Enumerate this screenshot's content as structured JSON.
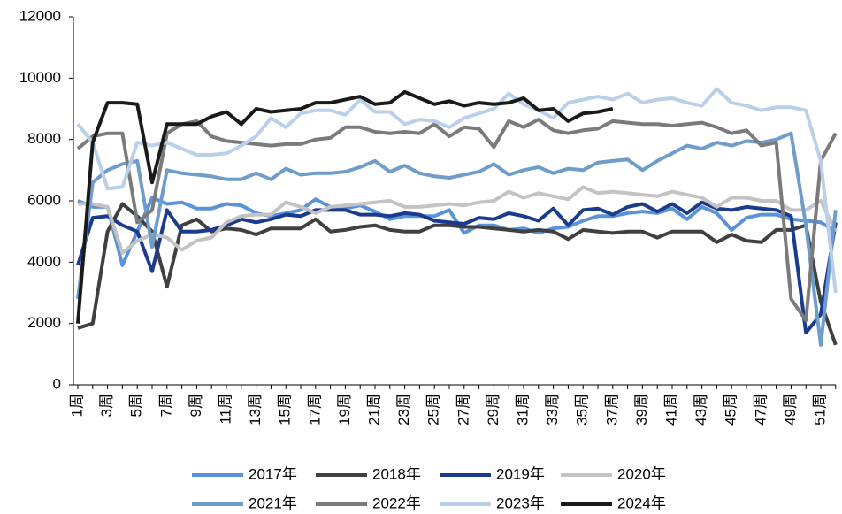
{
  "chart_data": {
    "type": "line",
    "categories": [
      "1周",
      null,
      "3周",
      null,
      "5周",
      null,
      "7周",
      null,
      "9周",
      null,
      "11周",
      null,
      "13周",
      null,
      "15周",
      null,
      "17周",
      null,
      "19周",
      null,
      "21周",
      null,
      "23周",
      null,
      "25周",
      null,
      "27周",
      null,
      "29周",
      null,
      "31周",
      null,
      "33周",
      null,
      "35周",
      null,
      "37周",
      null,
      "39周",
      null,
      "41周",
      null,
      "43周",
      null,
      "45周",
      null,
      "47周",
      null,
      "49周",
      null,
      "51周",
      null
    ],
    "ylim": [
      0,
      12000
    ],
    "yticks": [
      0,
      2000,
      4000,
      6000,
      8000,
      10000,
      12000
    ],
    "grid": false,
    "legend": "bottom",
    "series": [
      {
        "name": "2017年",
        "color": "#5b93d8",
        "values": [
          6000,
          5800,
          5800,
          3900,
          5000,
          6100,
          5900,
          5950,
          5750,
          5750,
          5900,
          5850,
          5600,
          5500,
          5600,
          5700,
          6050,
          5800,
          5750,
          5850,
          5650,
          5400,
          5500,
          5500,
          5500,
          5700,
          4950,
          5200,
          5200,
          5050,
          5100,
          4950,
          5100,
          5150,
          5350,
          5500,
          5500,
          5600,
          5650,
          5600,
          5750,
          5400,
          5800,
          5600,
          5050,
          5450,
          5550,
          5550,
          5400,
          5350,
          5300,
          5000
        ]
      },
      {
        "name": "2018年",
        "color": "#404040",
        "values": [
          1850,
          2000,
          5000,
          5900,
          5500,
          5000,
          3200,
          5200,
          5400,
          5000,
          5100,
          5050,
          4900,
          5100,
          5100,
          5100,
          5400,
          5000,
          5050,
          5150,
          5200,
          5050,
          5000,
          5000,
          5200,
          5200,
          5150,
          5150,
          5100,
          5050,
          5000,
          5050,
          5000,
          4750,
          5050,
          5000,
          4950,
          5000,
          5000,
          4800,
          5000,
          5000,
          5000,
          4650,
          4900,
          4700,
          4650,
          5050,
          5050,
          5200,
          2700,
          1300
        ]
      },
      {
        "name": "2019年",
        "color": "#1b3b8f",
        "values": [
          3900,
          5450,
          5500,
          5200,
          5000,
          3700,
          5700,
          5000,
          5000,
          5050,
          5200,
          5400,
          5300,
          5400,
          5550,
          5500,
          5700,
          5700,
          5700,
          5550,
          5550,
          5500,
          5600,
          5550,
          5350,
          5300,
          5250,
          5450,
          5400,
          5600,
          5500,
          5350,
          5750,
          5200,
          5700,
          5750,
          5550,
          5800,
          5900,
          5650,
          5900,
          5600,
          5950,
          5750,
          5700,
          5800,
          5750,
          5700,
          5500,
          1700,
          2300,
          5300
        ]
      },
      {
        "name": "2020年",
        "color": "#c3c3c3",
        "values": [
          5900,
          5900,
          5800,
          4300,
          4700,
          4900,
          4800,
          4400,
          4700,
          4800,
          5300,
          5500,
          5550,
          5550,
          5950,
          5800,
          5600,
          5800,
          5850,
          5900,
          5950,
          6000,
          5800,
          5800,
          5850,
          5900,
          5850,
          5950,
          6000,
          6300,
          6100,
          6250,
          6150,
          6050,
          6450,
          6250,
          6300,
          6250,
          6200,
          6150,
          6300,
          6200,
          6100,
          5800,
          6100,
          6100,
          6000,
          6000,
          5700,
          5700,
          6000,
          5000
        ]
      },
      {
        "name": "2021年",
        "color": "#6e9dcb",
        "values": [
          2800,
          6600,
          7000,
          7200,
          7300,
          4500,
          7000,
          6900,
          6850,
          6800,
          6700,
          6700,
          6900,
          6700,
          7050,
          6850,
          6900,
          6900,
          6950,
          7100,
          7300,
          6950,
          7150,
          6900,
          6800,
          6750,
          6850,
          6950,
          7200,
          6850,
          7000,
          7100,
          6900,
          7050,
          7000,
          7250,
          7300,
          7350,
          7000,
          7300,
          7550,
          7800,
          7700,
          7900,
          7800,
          7950,
          7900,
          8000,
          8200,
          5200,
          1300,
          5700
        ]
      },
      {
        "name": "2022年",
        "color": "#7b7b7b",
        "values": [
          7700,
          8100,
          8200,
          8200,
          5300,
          5700,
          8200,
          8500,
          8600,
          8100,
          7950,
          7900,
          7850,
          7800,
          7850,
          7850,
          8000,
          8050,
          8400,
          8400,
          8250,
          8200,
          8250,
          8200,
          8500,
          8100,
          8400,
          8350,
          7750,
          8600,
          8400,
          8650,
          8300,
          8200,
          8300,
          8350,
          8600,
          8550,
          8500,
          8500,
          8450,
          8500,
          8550,
          8400,
          8200,
          8300,
          7800,
          7900,
          2800,
          2100,
          7300,
          8200
        ]
      },
      {
        "name": "2023年",
        "color": "#b9cfea",
        "values": [
          8500,
          7900,
          6400,
          6450,
          7900,
          7800,
          7900,
          7700,
          7500,
          7500,
          7550,
          7800,
          8100,
          8700,
          8400,
          8850,
          8950,
          8950,
          8800,
          9300,
          8900,
          8900,
          8500,
          8650,
          8600,
          8400,
          8700,
          8850,
          9000,
          9500,
          9150,
          8950,
          8700,
          9200,
          9300,
          9400,
          9300,
          9500,
          9200,
          9300,
          9350,
          9200,
          9100,
          9650,
          9200,
          9100,
          8950,
          9050,
          9050,
          8950,
          7300,
          3000
        ]
      },
      {
        "name": "2024年",
        "color": "#1a1a1a",
        "values": [
          2000,
          7900,
          9200,
          9200,
          9150,
          6600,
          8500,
          8500,
          8500,
          8750,
          8900,
          8500,
          9000,
          8900,
          8950,
          9000,
          9200,
          9200,
          9300,
          9400,
          9150,
          9200,
          9550,
          9350,
          9150,
          9250,
          9100,
          9200,
          9150,
          9200,
          9350,
          8950,
          9000,
          8600,
          8850,
          8900,
          9000,
          null,
          null,
          null,
          null,
          null,
          null,
          null,
          null,
          null,
          null,
          null,
          null,
          null,
          null,
          null
        ]
      }
    ]
  }
}
